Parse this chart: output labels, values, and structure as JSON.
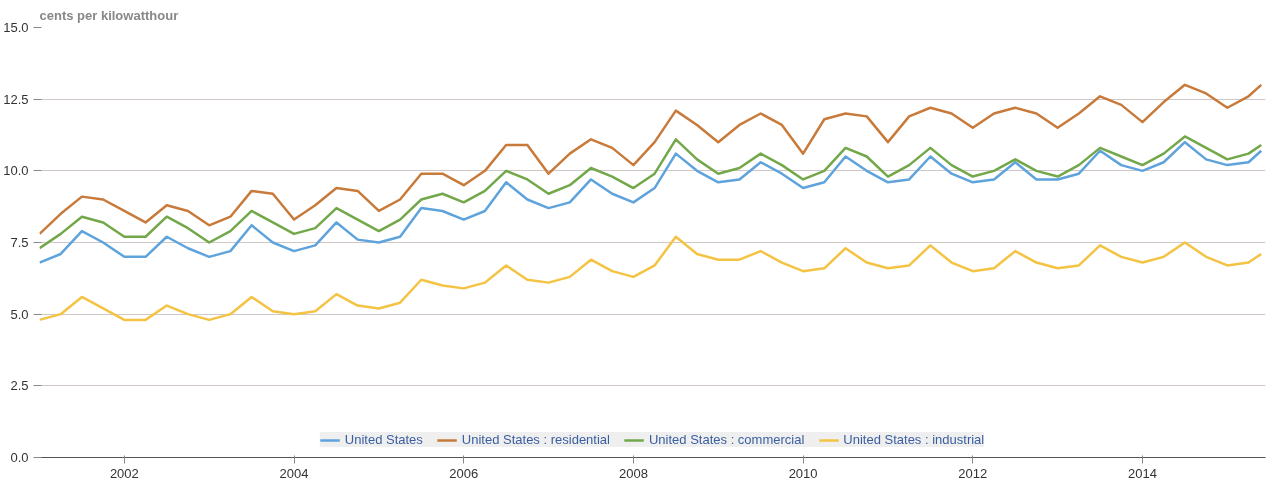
{
  "chart_data": {
    "type": "line",
    "ylabel": "cents per kilowatthour",
    "x": [
      2001,
      2001.25,
      2001.5,
      2001.75,
      2002,
      2002.25,
      2002.5,
      2002.75,
      2003,
      2003.25,
      2003.5,
      2003.75,
      2004,
      2004.25,
      2004.5,
      2004.75,
      2005,
      2005.25,
      2005.5,
      2005.75,
      2006,
      2006.25,
      2006.5,
      2006.75,
      2007,
      2007.25,
      2007.5,
      2007.75,
      2008,
      2008.25,
      2008.5,
      2008.75,
      2009,
      2009.25,
      2009.5,
      2009.75,
      2010,
      2010.25,
      2010.5,
      2010.75,
      2011,
      2011.25,
      2011.5,
      2011.75,
      2012,
      2012.25,
      2012.5,
      2012.75,
      2013,
      2013.25,
      2013.5,
      2013.75,
      2014,
      2014.25,
      2014.5,
      2014.75,
      2015,
      2015.25,
      2015.4
    ],
    "series": [
      {
        "name": "United States",
        "color": "#5ea3dc",
        "values": [
          6.8,
          7.1,
          7.9,
          7.5,
          7.0,
          7.0,
          7.7,
          7.3,
          7.0,
          7.2,
          8.1,
          7.5,
          7.2,
          7.4,
          8.2,
          7.6,
          7.5,
          7.7,
          8.7,
          8.6,
          8.3,
          8.6,
          9.6,
          9.0,
          8.7,
          8.9,
          9.7,
          9.2,
          8.9,
          9.4,
          10.6,
          10.0,
          9.6,
          9.7,
          10.3,
          9.9,
          9.4,
          9.6,
          10.5,
          10.0,
          9.6,
          9.7,
          10.5,
          9.9,
          9.6,
          9.7,
          10.3,
          9.7,
          9.7,
          9.9,
          10.7,
          10.2,
          10.0,
          10.3,
          11.0,
          10.4,
          10.2,
          10.3,
          10.7
        ]
      },
      {
        "name": "United States : residential",
        "color": "#c87a3a",
        "values": [
          7.8,
          8.5,
          9.1,
          9.0,
          8.6,
          8.2,
          8.8,
          8.6,
          8.1,
          8.4,
          9.3,
          9.2,
          8.3,
          8.8,
          9.4,
          9.3,
          8.6,
          9.0,
          9.9,
          9.9,
          9.5,
          10.0,
          10.9,
          10.9,
          9.9,
          10.6,
          11.1,
          10.8,
          10.2,
          11.0,
          12.1,
          11.6,
          11.0,
          11.6,
          12.0,
          11.6,
          10.6,
          11.8,
          12.0,
          11.9,
          11.0,
          11.9,
          12.2,
          12.0,
          11.5,
          12.0,
          12.2,
          12.0,
          11.5,
          12.0,
          12.6,
          12.3,
          11.7,
          12.4,
          13.0,
          12.7,
          12.2,
          12.6,
          13.0
        ]
      },
      {
        "name": "United States : commercial",
        "color": "#72a84a",
        "values": [
          7.3,
          7.8,
          8.4,
          8.2,
          7.7,
          7.7,
          8.4,
          8.0,
          7.5,
          7.9,
          8.6,
          8.2,
          7.8,
          8.0,
          8.7,
          8.3,
          7.9,
          8.3,
          9.0,
          9.2,
          8.9,
          9.3,
          10.0,
          9.7,
          9.2,
          9.5,
          10.1,
          9.8,
          9.4,
          9.9,
          11.1,
          10.4,
          9.9,
          10.1,
          10.6,
          10.2,
          9.7,
          10.0,
          10.8,
          10.5,
          9.8,
          10.2,
          10.8,
          10.2,
          9.8,
          10.0,
          10.4,
          10.0,
          9.8,
          10.2,
          10.8,
          10.5,
          10.2,
          10.6,
          11.2,
          10.8,
          10.4,
          10.6,
          10.9
        ]
      },
      {
        "name": "United States : industrial",
        "color": "#f4c343",
        "values": [
          4.8,
          5.0,
          5.6,
          5.2,
          4.8,
          4.8,
          5.3,
          5.0,
          4.8,
          5.0,
          5.6,
          5.1,
          5.0,
          5.1,
          5.7,
          5.3,
          5.2,
          5.4,
          6.2,
          6.0,
          5.9,
          6.1,
          6.7,
          6.2,
          6.1,
          6.3,
          6.9,
          6.5,
          6.3,
          6.7,
          7.7,
          7.1,
          6.9,
          6.9,
          7.2,
          6.8,
          6.5,
          6.6,
          7.3,
          6.8,
          6.6,
          6.7,
          7.4,
          6.8,
          6.5,
          6.6,
          7.2,
          6.8,
          6.6,
          6.7,
          7.4,
          7.0,
          6.8,
          7.0,
          7.5,
          7.0,
          6.7,
          6.8,
          7.1
        ]
      }
    ],
    "xlim": [
      2001,
      2015.45
    ],
    "xticks": [
      2002,
      2004,
      2006,
      2008,
      2010,
      2012,
      2014
    ],
    "ylim": [
      0,
      15
    ],
    "yticks": [
      {
        "value": 0,
        "label": "0.0"
      },
      {
        "value": 2.5,
        "label": "2.5"
      },
      {
        "value": 5,
        "label": "5.0"
      },
      {
        "value": 7.5,
        "label": "7.5"
      },
      {
        "value": 10,
        "label": "10.0"
      },
      {
        "value": 12.5,
        "label": "12.5"
      },
      {
        "value": 15,
        "label": "15.0"
      }
    ],
    "grid": "y",
    "legend": "bottom",
    "marker": "none",
    "line_style": "solid"
  }
}
